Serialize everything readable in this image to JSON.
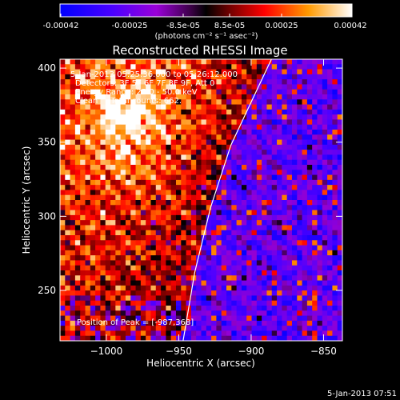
{
  "colorbar": {
    "ticks": [
      "-0.00042",
      "-0.00025",
      "-8.5e-05",
      "8.5e-05",
      "0.00025",
      "0.00042"
    ],
    "units": "(photons cm⁻² s⁻¹ asec⁻²)"
  },
  "plot": {
    "title": "Reconstructed RHESSI Image",
    "annotations": [
      "5-Jan-2013 05:25:36.000 to 05:26:12.000",
      "Detectors: 3F 5F 6F 7F 8F 9F, Att 0",
      "Energy Range: 25.0 - 50.0 keV",
      "Clean     Total counts: 662."
    ],
    "peak_label": "Position of Peak = [-987,368]",
    "timestamp": "5-Jan-2013 07:51"
  },
  "chart_data": {
    "type": "heatmap",
    "title": "Reconstructed RHESSI Image",
    "xlabel": "Heliocentric X (arcsec)",
    "ylabel": "Heliocentric Y (arcsec)",
    "xlim": [
      -1032,
      -837
    ],
    "ylim": [
      216,
      406
    ],
    "x_ticks": [
      -1000,
      -950,
      -900,
      -850
    ],
    "x_tick_labels": [
      "−1000",
      "−950",
      "−900",
      "−850"
    ],
    "y_ticks": [
      250,
      300,
      350,
      400
    ],
    "y_tick_labels": [
      "250",
      "300",
      "350",
      "400"
    ],
    "color_range": [
      -0.00042,
      0.00042
    ],
    "colormap": [
      "#0000ff",
      "#5500ff",
      "#aa00cc",
      "#550066",
      "#000000",
      "#8a0000",
      "#ff0000",
      "#ff8c00",
      "#ffffff"
    ],
    "peak": [
      -987,
      368
    ],
    "limb_curve": [
      [
        -947,
        216
      ],
      [
        -939,
        262
      ],
      [
        -928,
        306
      ],
      [
        -914,
        348
      ],
      [
        -901,
        375
      ],
      [
        -886,
        406
      ]
    ],
    "limb_color": "#ffffff"
  }
}
